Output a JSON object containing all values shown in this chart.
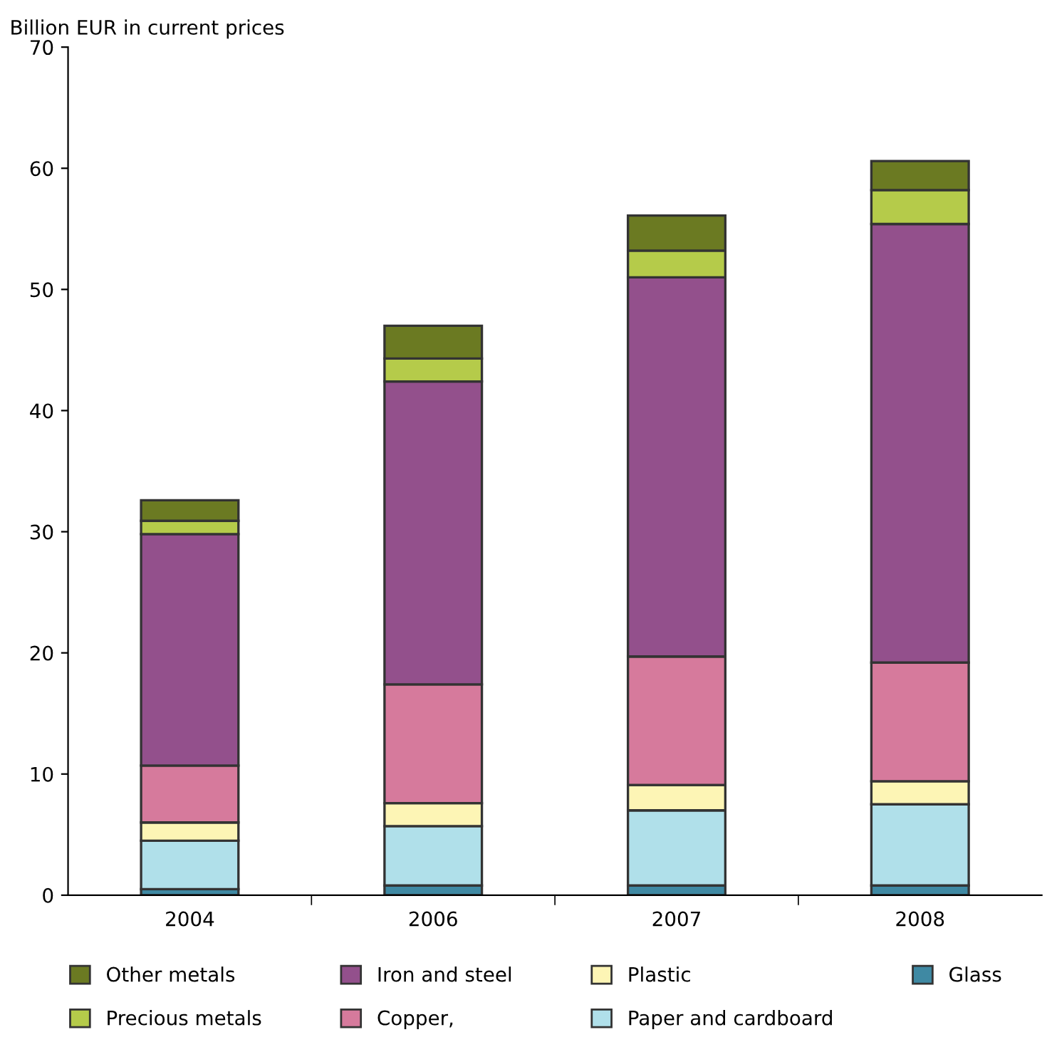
{
  "chart_data": {
    "type": "bar",
    "stacked": true,
    "ylabel": "Billion EUR in current prices",
    "categories": [
      "2004",
      "2006",
      "2007",
      "2008"
    ],
    "series": [
      {
        "name": "Glass",
        "color": "#3f89a3",
        "values": [
          0.5,
          0.8,
          0.8,
          0.8
        ]
      },
      {
        "name": "Paper and cardboard",
        "color": "#b0e0ea",
        "values": [
          4.0,
          4.9,
          6.2,
          6.7
        ]
      },
      {
        "name": "Plastic",
        "color": "#fdf5b5",
        "values": [
          1.5,
          1.9,
          2.1,
          1.9
        ]
      },
      {
        "name": "Copper,",
        "color": "#d67a9c",
        "values": [
          4.7,
          9.8,
          10.6,
          9.8
        ]
      },
      {
        "name": "Iron and steel",
        "color": "#93508c",
        "values": [
          19.1,
          25.0,
          31.3,
          36.2
        ]
      },
      {
        "name": "Precious metals",
        "color": "#b5cb4a",
        "values": [
          1.1,
          1.9,
          2.2,
          2.8
        ]
      },
      {
        "name": "Other metals",
        "color": "#6b7a22",
        "values": [
          1.7,
          2.7,
          2.9,
          2.4
        ]
      }
    ],
    "ylim": [
      0,
      70
    ],
    "yticks": [
      0,
      10,
      20,
      30,
      40,
      50,
      60,
      70
    ],
    "grid": false,
    "legend": "bottom"
  }
}
